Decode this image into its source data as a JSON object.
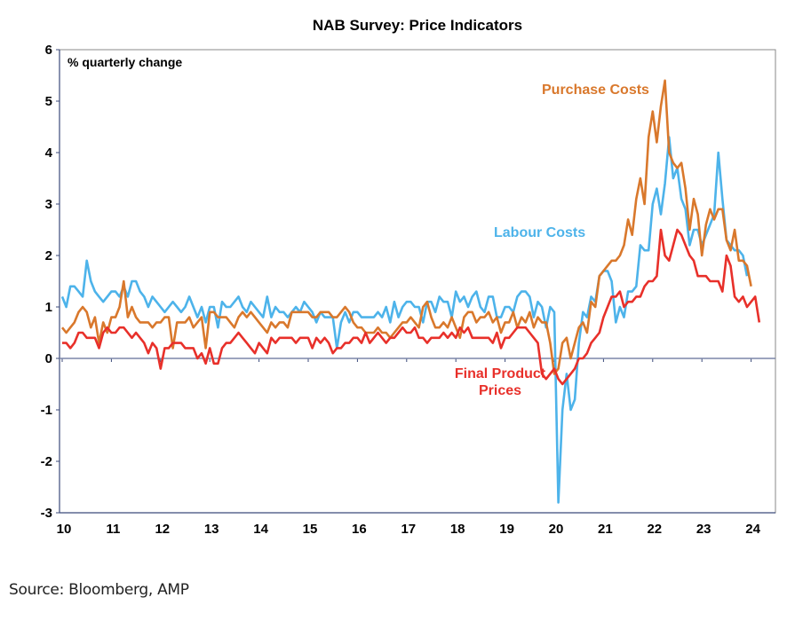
{
  "chart_data": {
    "type": "line",
    "title": "NAB Survey: Price Indicators",
    "ylabel": "% quarterly change",
    "xlabel": "",
    "ylim": [
      -3,
      6
    ],
    "yticks": [
      -3,
      -2,
      -1,
      0,
      1,
      2,
      3,
      4,
      5,
      6
    ],
    "xlim": [
      2010,
      2024.6
    ],
    "xticks": [
      2010,
      2011,
      2012,
      2013,
      2014,
      2015,
      2016,
      2017,
      2018,
      2019,
      2020,
      2021,
      2022,
      2023,
      2024
    ],
    "xtick_labels": [
      "10",
      "11",
      "12",
      "13",
      "14",
      "15",
      "16",
      "17",
      "18",
      "19",
      "20",
      "21",
      "22",
      "23",
      "24"
    ],
    "grid": false,
    "legend": "inline-labels",
    "x_start": 2010.0,
    "x_step_months": 1,
    "series": [
      {
        "name": "Labour Costs",
        "color": "#4db3ea",
        "values": [
          1.2,
          1.0,
          1.4,
          1.4,
          1.3,
          1.2,
          1.9,
          1.5,
          1.3,
          1.2,
          1.1,
          1.2,
          1.3,
          1.3,
          1.2,
          1.4,
          1.2,
          1.5,
          1.5,
          1.3,
          1.2,
          1.0,
          1.2,
          1.1,
          1.0,
          0.9,
          1.0,
          1.1,
          1.0,
          0.9,
          1.0,
          1.2,
          1.0,
          0.8,
          1.0,
          0.7,
          1.0,
          1.0,
          0.6,
          1.1,
          1.0,
          1.0,
          1.1,
          1.2,
          1.0,
          0.9,
          1.1,
          1.0,
          0.9,
          0.8,
          1.2,
          0.8,
          1.0,
          0.9,
          0.9,
          0.8,
          0.9,
          1.0,
          0.9,
          1.1,
          1.0,
          0.9,
          0.7,
          0.9,
          0.8,
          0.8,
          0.8,
          0.2,
          0.7,
          0.9,
          0.7,
          0.9,
          0.9,
          0.8,
          0.8,
          0.8,
          0.8,
          0.9,
          0.8,
          1.0,
          0.7,
          1.1,
          0.8,
          1.0,
          1.1,
          1.1,
          1.0,
          1.0,
          0.7,
          1.1,
          1.1,
          0.9,
          1.2,
          1.1,
          1.1,
          0.8,
          1.3,
          1.1,
          1.2,
          1.0,
          1.2,
          1.3,
          1.0,
          0.9,
          1.2,
          1.2,
          0.8,
          0.8,
          1.0,
          1.0,
          0.9,
          1.2,
          1.3,
          1.3,
          1.2,
          0.8,
          1.1,
          1.0,
          0.6,
          1.0,
          0.9,
          -2.8,
          -1.0,
          -0.3,
          -1.0,
          -0.8,
          0.3,
          0.9,
          0.8,
          1.2,
          1.1,
          1.6,
          1.7,
          1.7,
          1.5,
          0.7,
          1.0,
          0.8,
          1.3,
          1.3,
          1.4,
          2.2,
          2.1,
          2.1,
          3.0,
          3.3,
          2.8,
          3.4,
          4.3,
          3.5,
          3.7,
          3.1,
          2.9,
          2.2,
          2.5,
          2.5,
          2.2,
          2.4,
          2.6,
          2.8,
          4.0,
          3.1,
          2.3,
          2.2,
          2.1,
          2.1,
          2.0,
          1.6
        ]
      },
      {
        "name": "Purchase Costs",
        "color": "#d9782c",
        "values": [
          0.6,
          0.5,
          0.6,
          0.7,
          0.9,
          1.0,
          0.9,
          0.6,
          0.8,
          0.3,
          0.7,
          0.5,
          0.8,
          0.8,
          1.0,
          1.5,
          0.8,
          1.0,
          0.8,
          0.7,
          0.7,
          0.7,
          0.6,
          0.7,
          0.7,
          0.8,
          0.8,
          0.2,
          0.7,
          0.7,
          0.7,
          0.8,
          0.6,
          0.7,
          0.8,
          0.2,
          0.9,
          0.9,
          0.8,
          0.8,
          0.8,
          0.7,
          0.6,
          0.8,
          0.9,
          0.8,
          0.9,
          0.8,
          0.7,
          0.6,
          0.5,
          0.7,
          0.6,
          0.7,
          0.7,
          0.6,
          0.9,
          0.9,
          0.9,
          0.9,
          0.9,
          0.8,
          0.8,
          0.9,
          0.9,
          0.9,
          0.8,
          0.8,
          0.9,
          1.0,
          0.9,
          0.7,
          0.6,
          0.6,
          0.5,
          0.5,
          0.5,
          0.6,
          0.5,
          0.5,
          0.4,
          0.5,
          0.6,
          0.7,
          0.7,
          0.8,
          0.7,
          0.6,
          1.0,
          1.1,
          0.8,
          0.6,
          0.6,
          0.7,
          0.6,
          0.8,
          0.6,
          0.4,
          0.8,
          0.9,
          0.9,
          0.7,
          0.8,
          0.8,
          0.9,
          0.7,
          0.8,
          0.5,
          0.7,
          0.7,
          0.9,
          0.6,
          0.8,
          0.7,
          0.9,
          0.6,
          0.8,
          0.7,
          0.7,
          0.3,
          -0.3,
          -0.2,
          0.3,
          0.4,
          0.0,
          0.3,
          0.6,
          0.7,
          0.5,
          1.1,
          1.0,
          1.6,
          1.7,
          1.8,
          1.9,
          1.9,
          2.0,
          2.2,
          2.7,
          2.4,
          3.1,
          3.5,
          3.0,
          4.3,
          4.8,
          4.2,
          4.9,
          5.4,
          4.0,
          3.8,
          3.7,
          3.8,
          3.3,
          2.5,
          3.1,
          2.8,
          2.0,
          2.6,
          2.9,
          2.7,
          2.9,
          2.9,
          2.3,
          2.1,
          2.5,
          1.9,
          1.9,
          1.8,
          1.4
        ]
      },
      {
        "name": "Final Product Prices",
        "color": "#e8302a",
        "values": [
          0.3,
          0.3,
          0.2,
          0.3,
          0.5,
          0.5,
          0.4,
          0.4,
          0.4,
          0.2,
          0.5,
          0.6,
          0.5,
          0.5,
          0.6,
          0.6,
          0.5,
          0.4,
          0.5,
          0.4,
          0.3,
          0.1,
          0.3,
          0.2,
          -0.2,
          0.2,
          0.2,
          0.3,
          0.3,
          0.3,
          0.2,
          0.2,
          0.2,
          0.0,
          0.1,
          -0.1,
          0.2,
          -0.1,
          -0.1,
          0.2,
          0.3,
          0.3,
          0.4,
          0.5,
          0.4,
          0.3,
          0.2,
          0.1,
          0.3,
          0.2,
          0.1,
          0.4,
          0.3,
          0.4,
          0.4,
          0.4,
          0.4,
          0.3,
          0.4,
          0.4,
          0.4,
          0.2,
          0.4,
          0.3,
          0.4,
          0.3,
          0.1,
          0.2,
          0.2,
          0.3,
          0.3,
          0.4,
          0.4,
          0.3,
          0.5,
          0.3,
          0.4,
          0.5,
          0.4,
          0.3,
          0.4,
          0.4,
          0.5,
          0.6,
          0.5,
          0.5,
          0.6,
          0.4,
          0.4,
          0.3,
          0.4,
          0.4,
          0.4,
          0.5,
          0.4,
          0.5,
          0.4,
          0.6,
          0.5,
          0.6,
          0.4,
          0.4,
          0.4,
          0.4,
          0.4,
          0.3,
          0.5,
          0.2,
          0.4,
          0.4,
          0.5,
          0.6,
          0.6,
          0.6,
          0.5,
          0.4,
          0.3,
          -0.3,
          -0.4,
          -0.3,
          -0.2,
          -0.4,
          -0.5,
          -0.4,
          -0.3,
          -0.2,
          0.0,
          0.0,
          0.1,
          0.3,
          0.4,
          0.5,
          0.8,
          1.0,
          1.2,
          1.2,
          1.3,
          1.0,
          1.1,
          1.1,
          1.2,
          1.2,
          1.4,
          1.5,
          1.5,
          1.6,
          2.5,
          2.0,
          1.9,
          2.2,
          2.5,
          2.4,
          2.2,
          2.0,
          1.9,
          1.6,
          1.6,
          1.6,
          1.5,
          1.5,
          1.5,
          1.3,
          2.0,
          1.8,
          1.2,
          1.1,
          1.2,
          1.0,
          1.1,
          1.2,
          0.7
        ]
      }
    ],
    "annotations": [
      {
        "text": "Purchase Costs",
        "series": "Purchase Costs"
      },
      {
        "text": "Labour Costs",
        "series": "Labour Costs"
      },
      {
        "text": "Final Product",
        "series": "Final Product Prices"
      },
      {
        "text": "Prices",
        "series": "Final Product Prices"
      }
    ]
  },
  "source": "Source: Bloomberg,  AMP"
}
